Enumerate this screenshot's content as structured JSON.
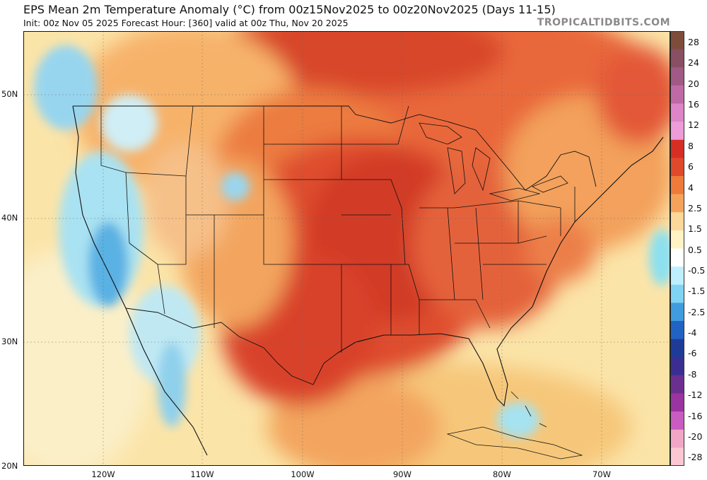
{
  "header": {
    "title": "EPS Mean 2m Temperature Anomaly (°C) from 00z15Nov2025 to 00z20Nov2025 (Days 11-15)",
    "subtitle": "Init: 00z Nov 05 2025   Forecast Hour: [360]   valid at 00z Thu, Nov 20 2025",
    "brand": "TROPICALTIDBITS.COM"
  },
  "map": {
    "region": "Continental United States",
    "lat_labels": [
      "50N",
      "40N",
      "30N",
      "20N"
    ],
    "lon_labels": [
      "120W",
      "110W",
      "100W",
      "90W",
      "80W",
      "70W"
    ]
  },
  "colorbar": {
    "labels": [
      "28",
      "24",
      "20",
      "16",
      "12",
      "8",
      "6",
      "4",
      "2.5",
      "1.5",
      "0.5",
      "-0.5",
      "-1.5",
      "-2.5",
      "-4",
      "-6",
      "-8",
      "-12",
      "-16",
      "-20",
      "-28"
    ],
    "colors": [
      "#7d4d3a",
      "#8a4f63",
      "#a05a85",
      "#c06aa5",
      "#de85c8",
      "#ee9bd9",
      "#d72e24",
      "#e04a2b",
      "#ee7b3a",
      "#f5a35a",
      "#fbd79a",
      "#fff3c4",
      "#ffffff",
      "#bfeeff",
      "#7fd4f4",
      "#3f9ddf",
      "#2163c4",
      "#1f3b98",
      "#3b2e92",
      "#6b2f8f",
      "#9a34a1",
      "#c85cc0",
      "#f1a6c6",
      "#fbc8d2"
    ]
  }
}
